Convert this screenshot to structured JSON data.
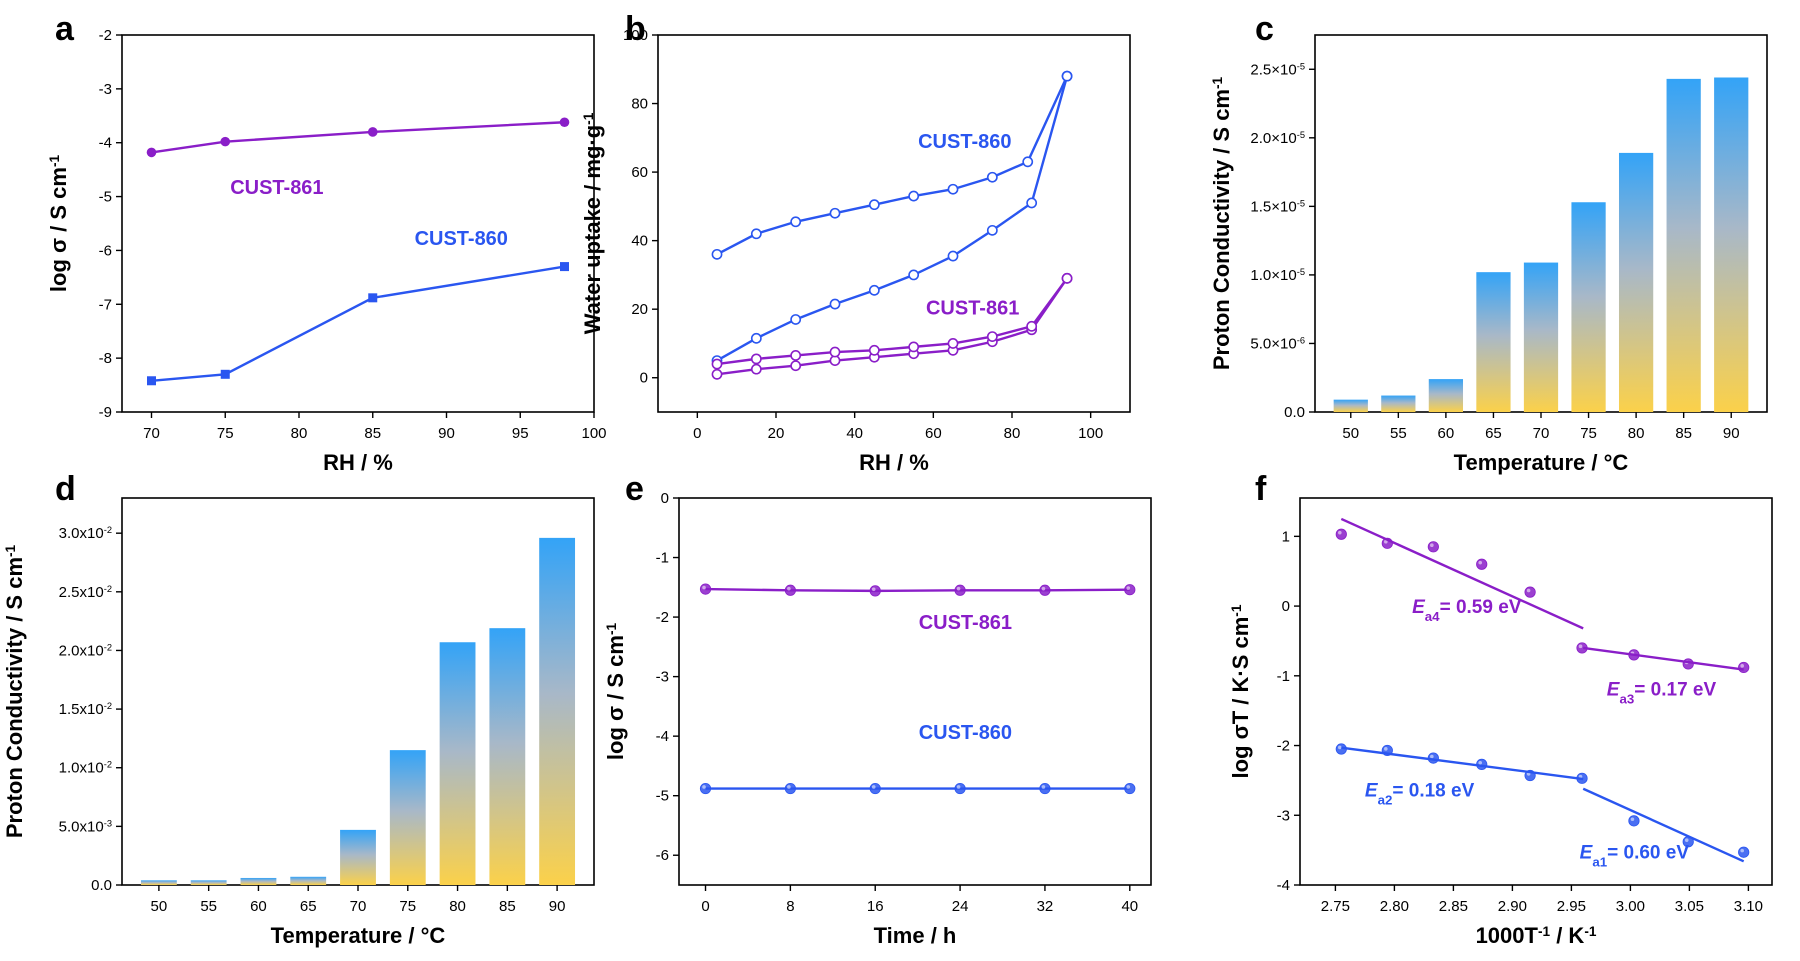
{
  "colors": {
    "purple": "#8a1ec8",
    "blue": "#2a56f0",
    "bar_top": "#33a3f7",
    "bar_bottom": "#fbd14a"
  },
  "chart_data": [
    {
      "panel": "a",
      "type": "line",
      "xlabel": "RH / %",
      "ylabel": "log σ / S cm⁻¹",
      "xlim": [
        68,
        100
      ],
      "ylim": [
        -9,
        -2
      ],
      "xticks": [
        70,
        75,
        80,
        85,
        90,
        95,
        100
      ],
      "yticks": [
        -9,
        -8,
        -7,
        -6,
        -5,
        -4,
        -3,
        -2
      ],
      "series": [
        {
          "name": "CUST-861",
          "color": "#8a1ec8",
          "marker": "circle",
          "x": [
            70,
            75,
            85,
            98
          ],
          "y": [
            -4.18,
            -3.98,
            -3.8,
            -3.62
          ]
        },
        {
          "name": "CUST-860",
          "color": "#2a56f0",
          "marker": "square",
          "x": [
            70,
            75,
            85,
            98
          ],
          "y": [
            -8.42,
            -8.3,
            -6.88,
            -6.3
          ]
        }
      ],
      "annotations": [
        {
          "text": "CUST-861",
          "x": 78.5,
          "y": -4.95,
          "color": "#8a1ec8"
        },
        {
          "text": "CUST-860",
          "x": 91,
          "y": -5.9,
          "color": "#2a56f0"
        }
      ]
    },
    {
      "panel": "b",
      "type": "line",
      "xlabel": "RH / %",
      "ylabel": "Water uptake / mg·g⁻¹",
      "xlim": [
        -10,
        110
      ],
      "ylim": [
        -10,
        100
      ],
      "xticks": [
        0,
        20,
        40,
        60,
        80,
        100
      ],
      "yticks": [
        0,
        20,
        40,
        60,
        80,
        100
      ],
      "series": [
        {
          "name": "CUST-860",
          "color": "#2a56f0",
          "marker": "open-circle",
          "loop": "adsorption",
          "x": [
            5,
            15,
            25,
            35,
            45,
            55,
            65,
            75,
            85,
            94
          ],
          "y": [
            5,
            11.5,
            17,
            21.5,
            25.5,
            30,
            35.5,
            43,
            51,
            88
          ]
        },
        {
          "name": "CUST-860",
          "color": "#2a56f0",
          "marker": "open-circle",
          "loop": "desorption",
          "x": [
            5,
            15,
            25,
            35,
            45,
            55,
            65,
            75,
            84,
            94
          ],
          "y": [
            36,
            42,
            45.5,
            48,
            50.5,
            53,
            55,
            58.5,
            63,
            88
          ]
        },
        {
          "name": "CUST-861",
          "color": "#8a1ec8",
          "marker": "open-circle",
          "loop": "adsorption",
          "x": [
            5,
            15,
            25,
            35,
            45,
            55,
            65,
            75,
            85,
            94
          ],
          "y": [
            1,
            2.5,
            3.5,
            5,
            6,
            7,
            8,
            10.5,
            14,
            29
          ]
        },
        {
          "name": "CUST-861",
          "color": "#8a1ec8",
          "marker": "open-circle",
          "loop": "desorption",
          "x": [
            5,
            15,
            25,
            35,
            45,
            55,
            65,
            75,
            85,
            94
          ],
          "y": [
            4,
            5.5,
            6.5,
            7.5,
            8,
            9,
            10,
            12,
            15,
            29
          ]
        }
      ],
      "annotations": [
        {
          "text": "CUST-860",
          "x": 68,
          "y": 67,
          "color": "#2a56f0"
        },
        {
          "text": "CUST-861",
          "x": 70,
          "y": 18.5,
          "color": "#8a1ec8"
        }
      ]
    },
    {
      "panel": "c",
      "type": "bar",
      "xlabel": "Temperature / °C",
      "ylabel": "Proton Conductivity / S cm⁻¹",
      "categories": [
        "50",
        "55",
        "60",
        "65",
        "70",
        "75",
        "80",
        "85",
        "90"
      ],
      "values": [
        9e-07,
        1.2e-06,
        2.4e-06,
        1.02e-05,
        1.09e-05,
        1.53e-05,
        1.89e-05,
        2.43e-05,
        2.44e-05
      ],
      "ylim": [
        0,
        2.75e-05
      ],
      "yticks": [
        {
          "value": 0,
          "label": "0.0"
        },
        {
          "value": 5e-06,
          "label": "5.0×10⁻⁶"
        },
        {
          "value": 1e-05,
          "label": "1.0×10⁻⁵"
        },
        {
          "value": 1.5e-05,
          "label": "1.5×10⁻⁵"
        },
        {
          "value": 2e-05,
          "label": "2.0×10⁻⁵"
        },
        {
          "value": 2.5e-05,
          "label": "2.5×10⁻⁵"
        }
      ]
    },
    {
      "panel": "d",
      "type": "bar",
      "xlabel": "Temperature / °C",
      "ylabel": "Proton Conductivity / S cm⁻¹",
      "categories": [
        "50",
        "55",
        "60",
        "65",
        "70",
        "75",
        "80",
        "85",
        "90"
      ],
      "values": [
        0.0004,
        0.0004,
        0.0006,
        0.0007,
        0.0047,
        0.0115,
        0.0207,
        0.0219,
        0.0296
      ],
      "ylim": [
        0,
        0.033
      ],
      "yticks": [
        {
          "value": 0,
          "label": "0.0"
        },
        {
          "value": 0.005,
          "label": "5.0x10⁻³"
        },
        {
          "value": 0.01,
          "label": "1.0x10⁻²"
        },
        {
          "value": 0.015,
          "label": "1.5x10⁻²"
        },
        {
          "value": 0.02,
          "label": "2.0x10⁻²"
        },
        {
          "value": 0.025,
          "label": "2.5x10⁻²"
        },
        {
          "value": 0.03,
          "label": "3.0x10⁻²"
        }
      ]
    },
    {
      "panel": "e",
      "type": "line",
      "xlabel": "Time / h",
      "ylabel": "log σ / S cm⁻¹",
      "xlim": [
        -2.5,
        42
      ],
      "ylim": [
        -6.5,
        0
      ],
      "xticks": [
        0,
        8,
        16,
        24,
        32,
        40
      ],
      "yticks": [
        -6,
        -5,
        -4,
        -3,
        -2,
        -1,
        0
      ],
      "series": [
        {
          "name": "CUST-861",
          "color": "#8a1ec8",
          "marker": "sphere",
          "x": [
            0,
            8,
            16,
            24,
            32,
            40
          ],
          "y": [
            -1.53,
            -1.55,
            -1.56,
            -1.55,
            -1.55,
            -1.54
          ]
        },
        {
          "name": "CUST-860",
          "color": "#2a56f0",
          "marker": "sphere",
          "x": [
            0,
            8,
            16,
            24,
            32,
            40
          ],
          "y": [
            -4.88,
            -4.88,
            -4.88,
            -4.88,
            -4.88,
            -4.88
          ]
        }
      ],
      "annotations": [
        {
          "text": "CUST-861",
          "x": 24.5,
          "y": -2.2,
          "color": "#8a1ec8"
        },
        {
          "text": "CUST-860",
          "x": 24.5,
          "y": -4.05,
          "color": "#2a56f0"
        }
      ]
    },
    {
      "panel": "f",
      "type": "scatter",
      "xlabel": "1000T⁻¹ / K⁻¹",
      "ylabel": "log σT / K·S cm⁻¹",
      "xlim": [
        2.72,
        3.12
      ],
      "ylim": [
        -4,
        1.55
      ],
      "xticks": [
        2.75,
        2.8,
        2.85,
        2.9,
        2.95,
        3.0,
        3.05,
        3.1
      ],
      "yticks": [
        -4,
        -3,
        -2,
        -1,
        0,
        1
      ],
      "series": [
        {
          "name": "CUST-861",
          "color": "#8a1ec8",
          "marker": "sphere",
          "x": [
            2.755,
            2.794,
            2.833,
            2.874,
            2.915,
            2.959,
            3.003,
            3.049,
            3.096
          ],
          "y": [
            1.03,
            0.9,
            0.85,
            0.6,
            0.2,
            -0.6,
            -0.7,
            -0.83,
            -0.88
          ]
        },
        {
          "name": "CUST-860",
          "color": "#2a56f0",
          "marker": "sphere",
          "x": [
            2.755,
            2.794,
            2.833,
            2.874,
            2.915,
            2.959,
            3.003,
            3.049,
            3.096
          ],
          "y": [
            -2.05,
            -2.07,
            -2.18,
            -2.27,
            -2.43,
            -2.47,
            -3.08,
            -3.38,
            -3.53
          ]
        }
      ],
      "fits": [
        {
          "color": "#8a1ec8",
          "x": [
            2.755,
            2.96
          ],
          "y": [
            1.25,
            -0.32
          ]
        },
        {
          "color": "#8a1ec8",
          "x": [
            2.96,
            3.096
          ],
          "y": [
            -0.6,
            -0.91
          ]
        },
        {
          "color": "#2a56f0",
          "x": [
            2.755,
            2.96
          ],
          "y": [
            -2.03,
            -2.48
          ]
        },
        {
          "color": "#2a56f0",
          "x": [
            2.96,
            3.096
          ],
          "y": [
            -2.62,
            -3.66
          ]
        }
      ],
      "annotations": [
        {
          "sub": "a4",
          "value": "= 0.59 eV",
          "x": 2.815,
          "y": -0.1,
          "color": "#8a1ec8"
        },
        {
          "sub": "a3",
          "value": "= 0.17 eV",
          "x": 2.98,
          "y": -1.28,
          "color": "#8a1ec8"
        },
        {
          "sub": "a2",
          "value": "= 0.18 eV",
          "x": 2.775,
          "y": -2.73,
          "color": "#2a56f0"
        },
        {
          "sub": "a1",
          "value": "= 0.60 eV",
          "x": 2.957,
          "y": -3.62,
          "color": "#2a56f0"
        }
      ]
    }
  ]
}
